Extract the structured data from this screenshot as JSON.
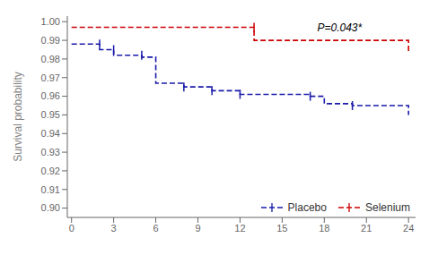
{
  "chart_data": {
    "type": "step",
    "ylabel": "Survival probability",
    "xlim": [
      -0.3,
      24.5
    ],
    "ylim": [
      0.895,
      1.003
    ],
    "xticks": [
      0,
      3,
      6,
      9,
      12,
      15,
      18,
      21,
      24
    ],
    "yticks": [
      {
        "value": 0.9,
        "label": "0.90"
      },
      0.91,
      0.92,
      0.93,
      0.94,
      0.95,
      0.96,
      0.97,
      0.98,
      0.99,
      {
        "value": 1.0,
        "label": "1.00"
      }
    ],
    "grid": false,
    "legend": "lower right",
    "annotations": [
      {
        "text": "P=0.043*",
        "x": 17.5,
        "y": 0.999
      }
    ],
    "series": [
      {
        "name": "Placebo",
        "color": "#1a1aaa",
        "line_style": "dashed",
        "marker": "|",
        "x": [
          0,
          2,
          2,
          3,
          3,
          5,
          5,
          6,
          6,
          8,
          8,
          10,
          10,
          12,
          12,
          15,
          15,
          17,
          17,
          18,
          18,
          20,
          20,
          24,
          24
        ],
        "values": [
          0.988,
          0.988,
          0.985,
          0.985,
          0.982,
          0.982,
          0.981,
          0.981,
          0.967,
          0.967,
          0.965,
          0.965,
          0.963,
          0.963,
          0.961,
          0.961,
          0.961,
          0.961,
          0.96,
          0.96,
          0.956,
          0.956,
          0.955,
          0.955,
          0.95
        ],
        "censor_x": [
          2,
          3,
          5,
          8,
          10,
          12,
          17,
          20
        ],
        "censor_y": [
          0.988,
          0.985,
          0.982,
          0.965,
          0.963,
          0.961,
          0.96,
          0.955
        ]
      },
      {
        "name": "Selenium",
        "color": "#cc0000",
        "line_style": "dashed",
        "marker": "|",
        "x": [
          0,
          13,
          13,
          24,
          24
        ],
        "values": [
          0.997,
          0.997,
          0.99,
          0.99,
          0.983
        ],
        "censor_x": [
          13
        ],
        "censor_y": [
          0.997
        ]
      }
    ]
  }
}
